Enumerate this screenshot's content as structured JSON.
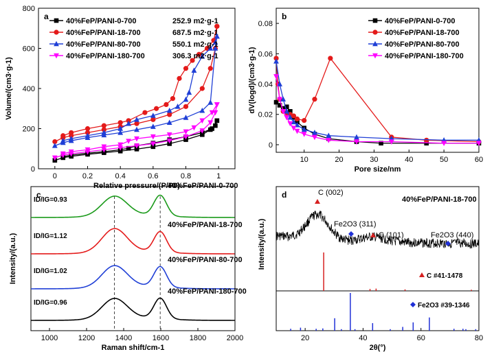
{
  "chart_data": [
    {
      "panel": "a",
      "type": "line",
      "xlabel": "Relative pressure/(P/P0)",
      "ylabel": "Volume/(cm3·g-1)",
      "xlim": [
        -0.1,
        1.1
      ],
      "ylim": [
        0,
        800
      ],
      "xticks": [
        0.0,
        0.2,
        0.4,
        0.6,
        0.8,
        1.0
      ],
      "yticks": [
        0,
        200,
        400,
        600,
        800
      ],
      "legend_position": "top-left",
      "series": [
        {
          "name": "40%FeP/PANI-0-700",
          "bet": "252.9 m2·g-1",
          "color": "#000000",
          "marker": "square",
          "adsorption": [
            [
              0.0,
              42
            ],
            [
              0.05,
              55
            ],
            [
              0.1,
              62
            ],
            [
              0.2,
              72
            ],
            [
              0.3,
              80
            ],
            [
              0.4,
              88
            ],
            [
              0.5,
              98
            ],
            [
              0.6,
              110
            ],
            [
              0.7,
              125
            ],
            [
              0.8,
              145
            ],
            [
              0.9,
              170
            ],
            [
              0.95,
              195
            ],
            [
              0.98,
              215
            ],
            [
              0.99,
              240
            ]
          ],
          "desorption": [
            [
              0.99,
              240
            ],
            [
              0.96,
              200
            ],
            [
              0.9,
              180
            ],
            [
              0.8,
              160
            ],
            [
              0.7,
              145
            ],
            [
              0.6,
              128
            ],
            [
              0.5,
              115
            ],
            [
              0.45,
              102
            ],
            [
              0.4,
              95
            ],
            [
              0.3,
              85
            ],
            [
              0.2,
              78
            ],
            [
              0.1,
              68
            ],
            [
              0.05,
              60
            ]
          ]
        },
        {
          "name": "40%FeP/PANI-18-700",
          "bet": "687.5 m2·g-1",
          "color": "#e41a1a",
          "marker": "circle",
          "adsorption": [
            [
              0.0,
              135
            ],
            [
              0.05,
              155
            ],
            [
              0.1,
              165
            ],
            [
              0.2,
              180
            ],
            [
              0.3,
              195
            ],
            [
              0.4,
              210
            ],
            [
              0.5,
              225
            ],
            [
              0.6,
              245
            ],
            [
              0.7,
              270
            ],
            [
              0.8,
              310
            ],
            [
              0.9,
              400
            ],
            [
              0.95,
              500
            ],
            [
              0.98,
              600
            ],
            [
              0.99,
              710
            ]
          ],
          "desorption": [
            [
              0.99,
              710
            ],
            [
              0.97,
              640
            ],
            [
              0.93,
              600
            ],
            [
              0.88,
              570
            ],
            [
              0.84,
              540
            ],
            [
              0.8,
              500
            ],
            [
              0.76,
              450
            ],
            [
              0.72,
              350
            ],
            [
              0.68,
              320
            ],
            [
              0.62,
              300
            ],
            [
              0.55,
              280
            ],
            [
              0.45,
              240
            ],
            [
              0.4,
              230
            ],
            [
              0.3,
              215
            ],
            [
              0.2,
              200
            ],
            [
              0.1,
              180
            ],
            [
              0.05,
              165
            ]
          ]
        },
        {
          "name": "40%FeP/PANI-80-700",
          "bet": "550.1 m2·g-1",
          "color": "#1f3fd6",
          "marker": "triangle-up",
          "adsorption": [
            [
              0.0,
              115
            ],
            [
              0.05,
              130
            ],
            [
              0.1,
              140
            ],
            [
              0.2,
              155
            ],
            [
              0.3,
              168
            ],
            [
              0.4,
              180
            ],
            [
              0.5,
              195
            ],
            [
              0.6,
              210
            ],
            [
              0.7,
              230
            ],
            [
              0.8,
              255
            ],
            [
              0.9,
              290
            ],
            [
              0.95,
              330
            ],
            [
              0.98,
              600
            ],
            [
              0.99,
              660
            ]
          ],
          "desorption": [
            [
              0.99,
              660
            ],
            [
              0.98,
              630
            ],
            [
              0.95,
              600
            ],
            [
              0.9,
              560
            ],
            [
              0.85,
              490
            ],
            [
              0.82,
              380
            ],
            [
              0.8,
              345
            ],
            [
              0.75,
              310
            ],
            [
              0.7,
              290
            ],
            [
              0.6,
              265
            ],
            [
              0.5,
              245
            ],
            [
              0.45,
              225
            ],
            [
              0.4,
              200
            ],
            [
              0.3,
              180
            ],
            [
              0.2,
              165
            ],
            [
              0.1,
              150
            ],
            [
              0.05,
              140
            ]
          ]
        },
        {
          "name": "40%FeP/PANI-180-700",
          "bet": "306.3 m2·g-1",
          "color": "#ff00ff",
          "marker": "triangle-down",
          "adsorption": [
            [
              0.0,
              55
            ],
            [
              0.05,
              68
            ],
            [
              0.1,
              75
            ],
            [
              0.2,
              85
            ],
            [
              0.3,
              95
            ],
            [
              0.4,
              105
            ],
            [
              0.5,
              115
            ],
            [
              0.6,
              125
            ],
            [
              0.7,
              140
            ],
            [
              0.8,
              160
            ],
            [
              0.9,
              190
            ],
            [
              0.95,
              230
            ],
            [
              0.98,
              280
            ],
            [
              0.99,
              320
            ]
          ],
          "desorption": [
            [
              0.99,
              320
            ],
            [
              0.96,
              280
            ],
            [
              0.9,
              240
            ],
            [
              0.85,
              205
            ],
            [
              0.8,
              185
            ],
            [
              0.7,
              170
            ],
            [
              0.6,
              160
            ],
            [
              0.5,
              150
            ],
            [
              0.45,
              138
            ],
            [
              0.4,
              120
            ],
            [
              0.3,
              110
            ],
            [
              0.2,
              95
            ],
            [
              0.1,
              85
            ],
            [
              0.05,
              75
            ]
          ]
        }
      ]
    },
    {
      "panel": "b",
      "type": "line",
      "xlabel": "Pore size/nm",
      "ylabel": "dV(logd)/(cm3·g-1)",
      "xlim": [
        2,
        60
      ],
      "ylim": [
        -0.005,
        0.09
      ],
      "xticks": [
        10,
        20,
        30,
        40,
        50,
        60
      ],
      "yticks": [
        0.0,
        0.02,
        0.04,
        0.06,
        0.08
      ],
      "legend_position": "top-right",
      "series": [
        {
          "name": "40%FeP/PANI-0-700",
          "color": "#000000",
          "marker": "square",
          "points": [
            [
              2,
              0.028
            ],
            [
              3,
              0.026
            ],
            [
              4,
              0.024
            ],
            [
              5,
              0.025
            ],
            [
              6,
              0.022
            ],
            [
              7,
              0.018
            ],
            [
              8,
              0.015
            ],
            [
              10,
              0.011
            ],
            [
              13,
              0.007
            ],
            [
              17,
              0.004
            ],
            [
              25,
              0.002
            ],
            [
              32,
              0.001
            ],
            [
              45,
              0.001
            ],
            [
              60,
              0.001
            ]
          ]
        },
        {
          "name": "40%FeP/PANI-18-700",
          "color": "#e41a1a",
          "marker": "circle",
          "points": [
            [
              2,
              0.057
            ],
            [
              2.5,
              0.04
            ],
            [
              3,
              0.03
            ],
            [
              4,
              0.022
            ],
            [
              5,
              0.02
            ],
            [
              6,
              0.02
            ],
            [
              7,
              0.019
            ],
            [
              8,
              0.017
            ],
            [
              10,
              0.016
            ],
            [
              13,
              0.03
            ],
            [
              17.5,
              0.057
            ],
            [
              35,
              0.005
            ],
            [
              45,
              0.003
            ],
            [
              60,
              0.002
            ]
          ]
        },
        {
          "name": "40%FeP/PANI-80-700",
          "color": "#1f3fd6",
          "marker": "triangle-up",
          "points": [
            [
              2,
              0.055
            ],
            [
              3,
              0.04
            ],
            [
              4,
              0.03
            ],
            [
              5,
              0.022
            ],
            [
              6,
              0.018
            ],
            [
              7,
              0.015
            ],
            [
              8,
              0.013
            ],
            [
              10,
              0.01
            ],
            [
              13,
              0.008
            ],
            [
              17,
              0.006
            ],
            [
              25,
              0.005
            ],
            [
              35,
              0.004
            ],
            [
              50,
              0.003
            ],
            [
              60,
              0.003
            ]
          ]
        },
        {
          "name": "40%FeP/PANI-180-700",
          "color": "#ff00ff",
          "marker": "triangle-down",
          "points": [
            [
              2,
              0.045
            ],
            [
              3,
              0.03
            ],
            [
              4,
              0.022
            ],
            [
              5,
              0.018
            ],
            [
              6,
              0.014
            ],
            [
              7,
              0.011
            ],
            [
              8,
              0.009
            ],
            [
              10,
              0.007
            ],
            [
              13,
              0.005
            ],
            [
              17,
              0.003
            ],
            [
              25,
              0.002
            ],
            [
              35,
              0.002
            ],
            [
              50,
              0.001
            ],
            [
              60,
              0.001
            ]
          ]
        }
      ]
    },
    {
      "panel": "c",
      "type": "line",
      "xlabel": "Raman shift/cm-1",
      "ylabel": "Intensity/(a.u.)",
      "xlim": [
        900,
        2000
      ],
      "xticks": [
        1000,
        1200,
        1400,
        1600,
        1800,
        2000
      ],
      "reference_lines": [
        1350,
        1597
      ],
      "series": [
        {
          "name": "40%FeP/PANI-0-700",
          "ratio": "ID/IG=0.93",
          "color": "#1a9a1a",
          "offset": 3
        },
        {
          "name": "40%FeP/PANI-18-700",
          "ratio": "ID/IG=1.12",
          "color": "#e41a1a",
          "offset": 2
        },
        {
          "name": "40%FeP/PANI-80-700",
          "ratio": "ID/IG=1.02",
          "color": "#1f3fd6",
          "offset": 1
        },
        {
          "name": "40%FeP/PANI-180-700",
          "ratio": "ID/IG=0.96",
          "color": "#000000",
          "offset": 0
        }
      ]
    },
    {
      "panel": "d",
      "type": "line",
      "xlabel": "2θ(°)",
      "ylabel": "Intensity/(a.u.)",
      "xlim": [
        10,
        80
      ],
      "xticks": [
        20,
        40,
        60,
        80
      ],
      "sample": "40%FeP/PANI-18-700",
      "annotations": [
        "C (002)",
        "Fe2O3 (311)",
        "C (101)",
        "Fe2O3 (440)"
      ],
      "reference_c": {
        "label": "C #41-1478",
        "color": "#d62020",
        "sticks": [
          [
            26.4,
            1.0
          ],
          [
            42.4,
            0.05
          ],
          [
            44.5,
            0.06
          ],
          [
            54.5,
            0.04
          ],
          [
            77.4,
            0.03
          ]
        ]
      },
      "reference_fe2o3": {
        "label": "Fe2O3 #39-1346",
        "color": "#1f2fd6",
        "sticks": [
          [
            15.0,
            0.05
          ],
          [
            18.4,
            0.08
          ],
          [
            23.8,
            0.05
          ],
          [
            26.1,
            0.06
          ],
          [
            30.2,
            0.33
          ],
          [
            32.5,
            0.04
          ],
          [
            35.6,
            1.0
          ],
          [
            37.2,
            0.04
          ],
          [
            43.3,
            0.2
          ],
          [
            49.4,
            0.04
          ],
          [
            53.7,
            0.1
          ],
          [
            57.3,
            0.22
          ],
          [
            62.9,
            0.35
          ],
          [
            71.4,
            0.05
          ],
          [
            74.5,
            0.05
          ],
          [
            75.5,
            0.04
          ],
          [
            78.9,
            0.04
          ]
        ]
      }
    }
  ]
}
